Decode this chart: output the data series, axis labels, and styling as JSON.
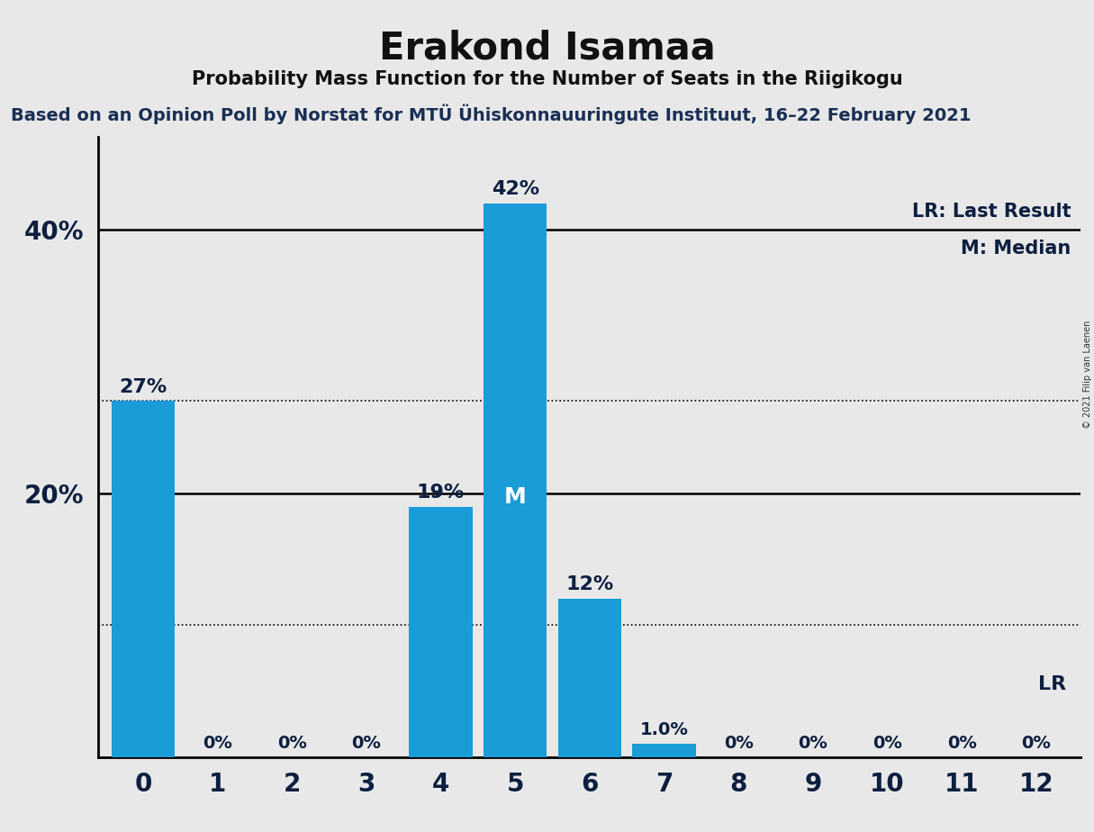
{
  "title": "Erakond Isamaa",
  "subtitle": "Probability Mass Function for the Number of Seats in the Riigikogu",
  "source_line": "Based on an Opinion Poll by Norstat for MTÜ Ühiskonnauuringute Instituut, 16–22 February 2021",
  "copyright": "© 2021 Filip van Laenen",
  "categories": [
    0,
    1,
    2,
    3,
    4,
    5,
    6,
    7,
    8,
    9,
    10,
    11,
    12
  ],
  "values": [
    27,
    0,
    0,
    0,
    19,
    42,
    12,
    1.0,
    0,
    0,
    0,
    0,
    0
  ],
  "bar_color": "#1a9cd8",
  "background_color": "#e8e8e8",
  "median_seat": 5,
  "lr_seat": 12,
  "dotted_lines": [
    10,
    27
  ],
  "solid_lines": [
    20,
    40
  ],
  "yticks": [
    20,
    40
  ],
  "ylim": [
    0,
    47
  ],
  "title_fontsize": 30,
  "subtitle_fontsize": 15,
  "source_fontsize": 14,
  "label_fontsize": 14,
  "tick_fontsize": 16,
  "title_color": "#111111",
  "subtitle_color": "#111111",
  "source_color": "#1a2f55",
  "axis_label_color": "#0d1f40",
  "lr_label_color": "#0d1f40"
}
